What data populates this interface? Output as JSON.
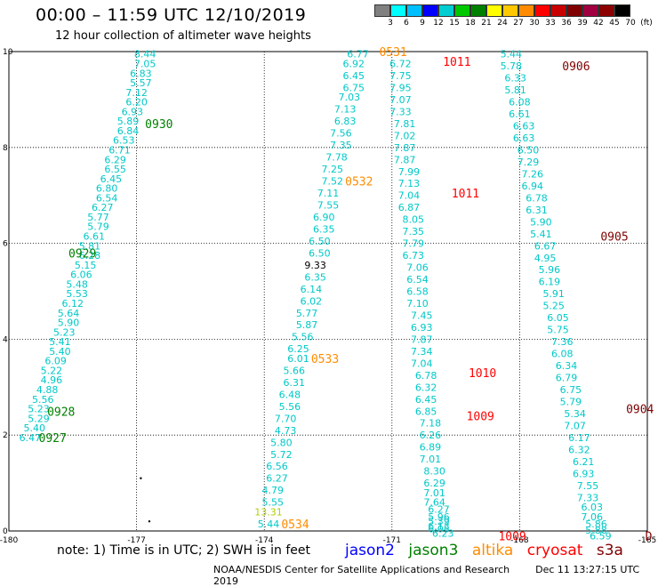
{
  "title": "00:00 – 11:59 UTC 12/10/2019",
  "subtitle": "12 hour collection of altimeter wave heights",
  "color_scale": {
    "colors": [
      "#808080",
      "#00ffff",
      "#00bfff",
      "#0000ff",
      "#00ced1",
      "#00c800",
      "#008000",
      "#ffff00",
      "#ffc800",
      "#ff8c00",
      "#ff0000",
      "#c80000",
      "#800000",
      "#a00040",
      "#8b0000",
      "#000000"
    ],
    "labels": [
      "3",
      "6",
      "9",
      "12",
      "15",
      "18",
      "21",
      "24",
      "27",
      "30",
      "33",
      "36",
      "39",
      "42",
      "45",
      "70",
      "(ft)"
    ]
  },
  "map": {
    "lon_range": [
      -180,
      -165
    ],
    "lat_range": [
      0,
      10
    ],
    "x_ticks": [
      "-180",
      "-177",
      "-174",
      "-171",
      "-168",
      "-165"
    ],
    "y_ticks": [
      "0",
      "2",
      "4",
      "6",
      "8",
      "10"
    ]
  },
  "colors": {
    "value": "#00c8c8",
    "light": "#00e0ff",
    "yellow": "#b0d000",
    "black": "#000000",
    "jason2": "#0000ff",
    "jason3": "#008000",
    "altika": "#ff8c00",
    "cryosat": "#ff0000",
    "s3a": "#800000"
  },
  "labels": [
    {
      "text": "0930",
      "lon": -176.8,
      "lat": 8.5,
      "color": "#008000"
    },
    {
      "text": "0929",
      "lon": -178.6,
      "lat": 5.8,
      "color": "#008000"
    },
    {
      "text": "0928",
      "lon": -179.1,
      "lat": 2.5,
      "color": "#008000"
    },
    {
      "text": "0927",
      "lon": -179.3,
      "lat": 1.95,
      "color": "#008000"
    },
    {
      "text": "0531",
      "lon": -171.3,
      "lat": 10.0,
      "color": "#ff8c00"
    },
    {
      "text": "0532",
      "lon": -172.1,
      "lat": 7.3,
      "color": "#ff8c00"
    },
    {
      "text": "0533",
      "lon": -172.9,
      "lat": 3.6,
      "color": "#ff8c00"
    },
    {
      "text": "0534",
      "lon": -173.6,
      "lat": 0.15,
      "color": "#ff8c00"
    },
    {
      "text": "1011",
      "lon": -169.8,
      "lat": 9.8,
      "color": "#ff0000"
    },
    {
      "text": "1011",
      "lon": -169.6,
      "lat": 7.05,
      "color": "#ff0000"
    },
    {
      "text": "1010",
      "lon": -169.2,
      "lat": 3.3,
      "color": "#ff0000"
    },
    {
      "text": "1009",
      "lon": -169.25,
      "lat": 2.4,
      "color": "#ff0000"
    },
    {
      "text": "1009",
      "lon": -168.5,
      "lat": -0.1,
      "color": "#ff0000"
    },
    {
      "text": "0906",
      "lon": -167.0,
      "lat": 9.7,
      "color": "#800000"
    },
    {
      "text": "0905",
      "lon": -166.1,
      "lat": 6.15,
      "color": "#800000"
    },
    {
      "text": "0904",
      "lon": -165.5,
      "lat": 2.55,
      "color": "#800000"
    },
    {
      "text": "D",
      "lon": -165.05,
      "lat": -0.1,
      "color": "#800000"
    }
  ],
  "tracks": [
    {
      "name": "jason3-0927-0930",
      "values": [
        {
          "t": "8.44",
          "lon": -176.8,
          "lat": 9.95
        },
        {
          "t": "7.05",
          "lon": -176.8,
          "lat": 9.75
        },
        {
          "t": "6.83",
          "lon": -176.9,
          "lat": 9.55
        },
        {
          "t": "5.57",
          "lon": -176.9,
          "lat": 9.35
        },
        {
          "t": "7.12",
          "lon": -177.0,
          "lat": 9.15
        },
        {
          "t": "6.20",
          "lon": -177.0,
          "lat": 8.95
        },
        {
          "t": "6.93",
          "lon": -177.1,
          "lat": 8.75
        },
        {
          "t": "5.89",
          "lon": -177.2,
          "lat": 8.55
        },
        {
          "t": "6.84",
          "lon": -177.2,
          "lat": 8.35
        },
        {
          "t": "6.53",
          "lon": -177.3,
          "lat": 8.15
        },
        {
          "t": "6.71",
          "lon": -177.4,
          "lat": 7.95
        },
        {
          "t": "6.29",
          "lon": -177.5,
          "lat": 7.75
        },
        {
          "t": "6.55",
          "lon": -177.5,
          "lat": 7.55
        },
        {
          "t": "6.45",
          "lon": -177.6,
          "lat": 7.35
        },
        {
          "t": "6.80",
          "lon": -177.7,
          "lat": 7.15
        },
        {
          "t": "6.54",
          "lon": -177.7,
          "lat": 6.95
        },
        {
          "t": "6.27",
          "lon": -177.8,
          "lat": 6.75
        },
        {
          "t": "5.77",
          "lon": -177.9,
          "lat": 6.55
        },
        {
          "t": "5.79",
          "lon": -177.9,
          "lat": 6.35
        },
        {
          "t": "6.61",
          "lon": -178.0,
          "lat": 6.15
        },
        {
          "t": "5.81",
          "lon": -178.1,
          "lat": 5.95
        },
        {
          "t": "6.28",
          "lon": -178.1,
          "lat": 5.75
        },
        {
          "t": "5.15",
          "lon": -178.2,
          "lat": 5.55
        },
        {
          "t": "6.06",
          "lon": -178.3,
          "lat": 5.35
        },
        {
          "t": "5.48",
          "lon": -178.4,
          "lat": 5.15
        },
        {
          "t": "5.53",
          "lon": -178.4,
          "lat": 4.95
        },
        {
          "t": "6.12",
          "lon": -178.5,
          "lat": 4.75
        },
        {
          "t": "5.64",
          "lon": -178.6,
          "lat": 4.55
        },
        {
          "t": "5.90",
          "lon": -178.6,
          "lat": 4.35
        },
        {
          "t": "5.23",
          "lon": -178.7,
          "lat": 4.15
        },
        {
          "t": "5.41",
          "lon": -178.8,
          "lat": 3.95
        },
        {
          "t": "5.40",
          "lon": -178.8,
          "lat": 3.75
        },
        {
          "t": "6.09",
          "lon": -178.9,
          "lat": 3.55
        },
        {
          "t": "5.22",
          "lon": -179.0,
          "lat": 3.35
        },
        {
          "t": "4.96",
          "lon": -179.0,
          "lat": 3.15
        },
        {
          "t": "4.88",
          "lon": -179.1,
          "lat": 2.95
        },
        {
          "t": "5.56",
          "lon": -179.2,
          "lat": 2.75
        },
        {
          "t": "5.23",
          "lon": -179.3,
          "lat": 2.55
        },
        {
          "t": "5.29",
          "lon": -179.3,
          "lat": 2.35
        },
        {
          "t": "5.40",
          "lon": -179.4,
          "lat": 2.15
        },
        {
          "t": "6.47",
          "lon": -179.5,
          "lat": 1.95
        }
      ]
    },
    {
      "name": "altika-0531-0534",
      "values": [
        {
          "t": "6.77",
          "lon": -171.8,
          "lat": 9.95
        },
        {
          "t": "6.92",
          "lon": -171.9,
          "lat": 9.75
        },
        {
          "t": "6.45",
          "lon": -171.9,
          "lat": 9.5
        },
        {
          "t": "6.75",
          "lon": -171.9,
          "lat": 9.25
        },
        {
          "t": "7.03",
          "lon": -172.0,
          "lat": 9.05
        },
        {
          "t": "7.13",
          "lon": -172.1,
          "lat": 8.8
        },
        {
          "t": "6.83",
          "lon": -172.1,
          "lat": 8.55
        },
        {
          "t": "7.56",
          "lon": -172.2,
          "lat": 8.3
        },
        {
          "t": "7.35",
          "lon": -172.2,
          "lat": 8.05
        },
        {
          "t": "7.78",
          "lon": -172.3,
          "lat": 7.8
        },
        {
          "t": "7.25",
          "lon": -172.4,
          "lat": 7.55
        },
        {
          "t": "7.52",
          "lon": -172.4,
          "lat": 7.3
        },
        {
          "t": "7.11",
          "lon": -172.5,
          "lat": 7.05
        },
        {
          "t": "7.55",
          "lon": -172.5,
          "lat": 6.8
        },
        {
          "t": "6.90",
          "lon": -172.6,
          "lat": 6.55
        },
        {
          "t": "6.35",
          "lon": -172.6,
          "lat": 6.3
        },
        {
          "t": "6.50",
          "lon": -172.7,
          "lat": 6.05
        },
        {
          "t": "6.50",
          "lon": -172.7,
          "lat": 5.8
        },
        {
          "t": "9.33",
          "lon": -172.8,
          "lat": 5.55,
          "c": "#000000"
        },
        {
          "t": "6.35",
          "lon": -172.8,
          "lat": 5.3
        },
        {
          "t": "6.14",
          "lon": -172.9,
          "lat": 5.05
        },
        {
          "t": "6.02",
          "lon": -172.9,
          "lat": 4.8
        },
        {
          "t": "5.77",
          "lon": -173.0,
          "lat": 4.55
        },
        {
          "t": "5.87",
          "lon": -173.0,
          "lat": 4.3
        },
        {
          "t": "5.56",
          "lon": -173.1,
          "lat": 4.05
        },
        {
          "t": "6.25",
          "lon": -173.2,
          "lat": 3.8
        },
        {
          "t": "6.01",
          "lon": -173.2,
          "lat": 3.6
        },
        {
          "t": "5.66",
          "lon": -173.3,
          "lat": 3.35
        },
        {
          "t": "6.31",
          "lon": -173.3,
          "lat": 3.1
        },
        {
          "t": "6.48",
          "lon": -173.4,
          "lat": 2.85
        },
        {
          "t": "5.56",
          "lon": -173.4,
          "lat": 2.6
        },
        {
          "t": "7.70",
          "lon": -173.5,
          "lat": 2.35
        },
        {
          "t": "4.73",
          "lon": -173.5,
          "lat": 2.1
        },
        {
          "t": "5.80",
          "lon": -173.6,
          "lat": 1.85
        },
        {
          "t": "5.72",
          "lon": -173.6,
          "lat": 1.6
        },
        {
          "t": "6.56",
          "lon": -173.7,
          "lat": 1.35
        },
        {
          "t": "6.27",
          "lon": -173.7,
          "lat": 1.1
        },
        {
          "t": "4.79",
          "lon": -173.8,
          "lat": 0.85
        },
        {
          "t": "5.55",
          "lon": -173.8,
          "lat": 0.6
        },
        {
          "t": "13.31",
          "lon": -173.9,
          "lat": 0.4,
          "c": "#b0d000"
        },
        {
          "t": "5.44",
          "lon": -173.9,
          "lat": 0.15
        }
      ]
    },
    {
      "name": "cryosat-1009-1011",
      "values": [
        {
          "t": "6.72",
          "lon": -170.8,
          "lat": 9.75
        },
        {
          "t": "7.75",
          "lon": -170.8,
          "lat": 9.5
        },
        {
          "t": "7.95",
          "lon": -170.8,
          "lat": 9.25
        },
        {
          "t": "7.07",
          "lon": -170.8,
          "lat": 9.0
        },
        {
          "t": "7.33",
          "lon": -170.8,
          "lat": 8.75
        },
        {
          "t": "7.81",
          "lon": -170.7,
          "lat": 8.5
        },
        {
          "t": "7.02",
          "lon": -170.7,
          "lat": 8.25
        },
        {
          "t": "7.87",
          "lon": -170.7,
          "lat": 8.0
        },
        {
          "t": "7.87",
          "lon": -170.7,
          "lat": 7.75
        },
        {
          "t": "7.99",
          "lon": -170.6,
          "lat": 7.5
        },
        {
          "t": "7.13",
          "lon": -170.6,
          "lat": 7.25
        },
        {
          "t": "7.04",
          "lon": -170.6,
          "lat": 7.0
        },
        {
          "t": "6.87",
          "lon": -170.6,
          "lat": 6.75
        },
        {
          "t": "8.05",
          "lon": -170.5,
          "lat": 6.5
        },
        {
          "t": "7.35",
          "lon": -170.5,
          "lat": 6.25
        },
        {
          "t": "7.79",
          "lon": -170.5,
          "lat": 6.0
        },
        {
          "t": "6.73",
          "lon": -170.5,
          "lat": 5.75
        },
        {
          "t": "7.06",
          "lon": -170.4,
          "lat": 5.5
        },
        {
          "t": "6.54",
          "lon": -170.4,
          "lat": 5.25
        },
        {
          "t": "6.58",
          "lon": -170.4,
          "lat": 5.0
        },
        {
          "t": "7.10",
          "lon": -170.4,
          "lat": 4.75
        },
        {
          "t": "7.45",
          "lon": -170.3,
          "lat": 4.5
        },
        {
          "t": "6.93",
          "lon": -170.3,
          "lat": 4.25
        },
        {
          "t": "7.87",
          "lon": -170.3,
          "lat": 4.0
        },
        {
          "t": "7.34",
          "lon": -170.3,
          "lat": 3.75
        },
        {
          "t": "7.04",
          "lon": -170.3,
          "lat": 3.5
        },
        {
          "t": "6.78",
          "lon": -170.2,
          "lat": 3.25
        },
        {
          "t": "6.32",
          "lon": -170.2,
          "lat": 3.0
        },
        {
          "t": "6.45",
          "lon": -170.2,
          "lat": 2.75
        },
        {
          "t": "6.85",
          "lon": -170.2,
          "lat": 2.5
        },
        {
          "t": "7.18",
          "lon": -170.1,
          "lat": 2.25
        },
        {
          "t": "6.26",
          "lon": -170.1,
          "lat": 2.0
        },
        {
          "t": "6.89",
          "lon": -170.1,
          "lat": 1.75
        },
        {
          "t": "7.01",
          "lon": -170.1,
          "lat": 1.5
        },
        {
          "t": "8.30",
          "lon": -170.0,
          "lat": 1.25
        },
        {
          "t": "6.29",
          "lon": -170.0,
          "lat": 1.0
        },
        {
          "t": "7.01",
          "lon": -170.0,
          "lat": 0.8
        },
        {
          "t": "7.64",
          "lon": -170.0,
          "lat": 0.6
        },
        {
          "t": "6.27",
          "lon": -169.9,
          "lat": 0.45
        },
        {
          "t": "5.96",
          "lon": -169.9,
          "lat": 0.3
        },
        {
          "t": "5.39",
          "lon": -169.9,
          "lat": 0.2
        },
        {
          "t": "6.13",
          "lon": -169.9,
          "lat": 0.1
        },
        {
          "t": "6.05",
          "lon": -169.9,
          "lat": 0.05
        },
        {
          "t": "6.23",
          "lon": -169.8,
          "lat": -0.05
        }
      ]
    },
    {
      "name": "s3a-0904-0906",
      "values": [
        {
          "t": "5.44",
          "lon": -168.2,
          "lat": 9.95
        },
        {
          "t": "5.78",
          "lon": -168.2,
          "lat": 9.7
        },
        {
          "t": "6.33",
          "lon": -168.1,
          "lat": 9.45
        },
        {
          "t": "5.81",
          "lon": -168.1,
          "lat": 9.2
        },
        {
          "t": "6.08",
          "lon": -168.0,
          "lat": 8.95
        },
        {
          "t": "6.61",
          "lon": -168.0,
          "lat": 8.7
        },
        {
          "t": "6.63",
          "lon": -167.9,
          "lat": 8.45
        },
        {
          "t": "6.63",
          "lon": -167.9,
          "lat": 8.2
        },
        {
          "t": "6.50",
          "lon": -167.8,
          "lat": 7.95
        },
        {
          "t": "7.29",
          "lon": -167.8,
          "lat": 7.7
        },
        {
          "t": "7.26",
          "lon": -167.7,
          "lat": 7.45
        },
        {
          "t": "6.94",
          "lon": -167.7,
          "lat": 7.2
        },
        {
          "t": "6.78",
          "lon": -167.6,
          "lat": 6.95
        },
        {
          "t": "6.31",
          "lon": -167.6,
          "lat": 6.7
        },
        {
          "t": "5.90",
          "lon": -167.5,
          "lat": 6.45
        },
        {
          "t": "5.41",
          "lon": -167.5,
          "lat": 6.2
        },
        {
          "t": "6.67",
          "lon": -167.4,
          "lat": 5.95
        },
        {
          "t": "4.95",
          "lon": -167.4,
          "lat": 5.7
        },
        {
          "t": "5.96",
          "lon": -167.3,
          "lat": 5.45
        },
        {
          "t": "6.19",
          "lon": -167.3,
          "lat": 5.2
        },
        {
          "t": "5.91",
          "lon": -167.2,
          "lat": 4.95
        },
        {
          "t": "5.25",
          "lon": -167.2,
          "lat": 4.7
        },
        {
          "t": "6.05",
          "lon": -167.1,
          "lat": 4.45
        },
        {
          "t": "5.75",
          "lon": -167.1,
          "lat": 4.2
        },
        {
          "t": "7.36",
          "lon": -167.0,
          "lat": 3.95
        },
        {
          "t": "6.08",
          "lon": -167.0,
          "lat": 3.7
        },
        {
          "t": "6.34",
          "lon": -166.9,
          "lat": 3.45
        },
        {
          "t": "6.79",
          "lon": -166.9,
          "lat": 3.2
        },
        {
          "t": "6.75",
          "lon": -166.8,
          "lat": 2.95
        },
        {
          "t": "5.79",
          "lon": -166.8,
          "lat": 2.7
        },
        {
          "t": "5.34",
          "lon": -166.7,
          "lat": 2.45
        },
        {
          "t": "7.07",
          "lon": -166.7,
          "lat": 2.2
        },
        {
          "t": "6.17",
          "lon": -166.6,
          "lat": 1.95
        },
        {
          "t": "6.32",
          "lon": -166.6,
          "lat": 1.7
        },
        {
          "t": "6.21",
          "lon": -166.5,
          "lat": 1.45
        },
        {
          "t": "6.93",
          "lon": -166.5,
          "lat": 1.2
        },
        {
          "t": "7.55",
          "lon": -166.4,
          "lat": 0.95
        },
        {
          "t": "7.33",
          "lon": -166.4,
          "lat": 0.7
        },
        {
          "t": "6.03",
          "lon": -166.3,
          "lat": 0.5
        },
        {
          "t": "7.06",
          "lon": -166.3,
          "lat": 0.3
        },
        {
          "t": "5.86",
          "lon": -166.2,
          "lat": 0.15
        },
        {
          "t": "5.88",
          "lon": -166.2,
          "lat": 0.02
        },
        {
          "t": "6.59",
          "lon": -166.1,
          "lat": -0.1
        }
      ]
    }
  ],
  "dots": [
    {
      "lon": -176.9,
      "lat": 1.1
    },
    {
      "lon": -176.7,
      "lat": 0.2
    }
  ],
  "note": "note:  1) Time is in UTC; 2) SWH is in feet",
  "legend": {
    "jason2": "jason2",
    "jason3": "jason3",
    "altika": "altika",
    "cryosat": "cryosat",
    "s3a": "s3a"
  },
  "footer": {
    "agency": "NOAA/NESDIS Center for Satellite Applications and Research",
    "timestamp": "Dec 11 13:27:15 UTC 2019"
  }
}
